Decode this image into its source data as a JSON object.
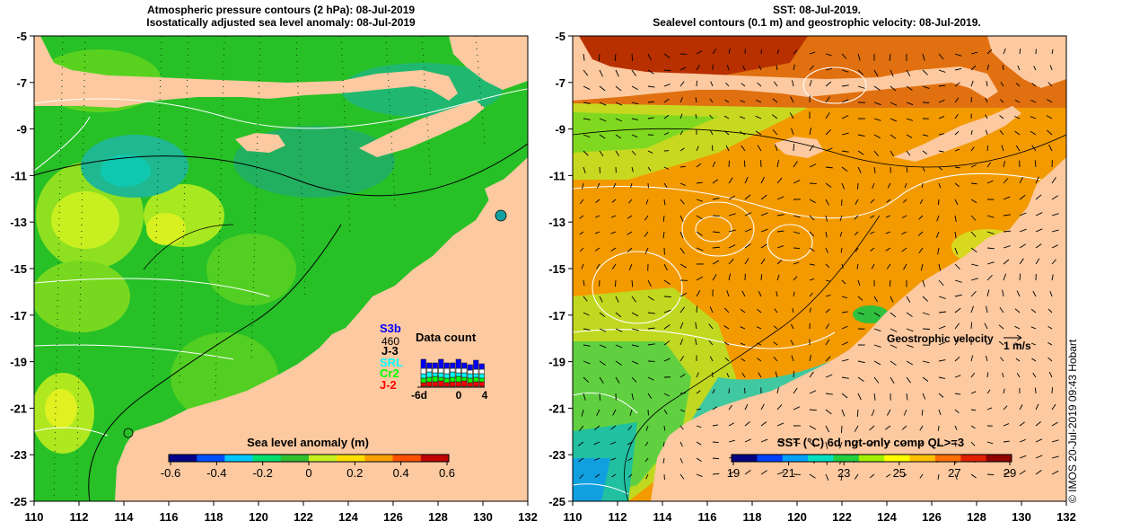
{
  "left_panel": {
    "title_line1": "Atmospheric pressure contours (2 hPa): 08-Jul-2019",
    "title_line2": "Isostatically adjusted sea level anomaly: 08-Jul-2019",
    "x_ticks": [
      "110",
      "112",
      "114",
      "116",
      "118",
      "120",
      "122",
      "124",
      "126",
      "128",
      "130",
      "132"
    ],
    "y_ticks": [
      "-5",
      "-7",
      "-9",
      "-11",
      "-13",
      "-15",
      "-17",
      "-19",
      "-21",
      "-23",
      "-25"
    ],
    "colorbar": {
      "label": "Sea level anomaly (m)",
      "ticks": [
        "-0.6",
        "-0.4",
        "-0.2",
        "0",
        "0.2",
        "0.4",
        "0.6"
      ],
      "colors": [
        "#00008b",
        "#0050ff",
        "#00c8ff",
        "#00e070",
        "#30c030",
        "#c8f020",
        "#ffe000",
        "#ffa000",
        "#ff5000",
        "#c00000"
      ]
    },
    "data_count": {
      "title": "Data count",
      "missions": [
        {
          "name": "S3b",
          "color": "#0000ff"
        },
        {
          "name": "J-3",
          "color": "#000000",
          "value": "460"
        },
        {
          "name": "SRL",
          "color": "#00ffff"
        },
        {
          "name": "Cr2",
          "color": "#00ff00"
        },
        {
          "name": "J-2",
          "color": "#ff0000"
        }
      ],
      "axis_ticks": [
        "-6d",
        "0",
        "4"
      ]
    }
  },
  "right_panel": {
    "title_line1": "SST: 08-Jul-2019.",
    "title_line2": "Sealevel contours (0.1 m) and geostrophic velocity: 08-Jul-2019.",
    "x_ticks": [
      "110",
      "112",
      "114",
      "116",
      "118",
      "120",
      "122",
      "124",
      "126",
      "128",
      "130",
      "132"
    ],
    "y_ticks": [
      "-5",
      "-7",
      "-9",
      "-11",
      "-13",
      "-15",
      "-17",
      "-19",
      "-21",
      "-23",
      "-25"
    ],
    "velocity_label": "Geostrophic velocity",
    "velocity_unit": "1 m/s",
    "colorbar": {
      "label": "SST (°C) 6d ngt-only comp QL>=3",
      "ticks": [
        "19",
        "21",
        "23",
        "25",
        "27",
        "29"
      ],
      "colors": [
        "#000080",
        "#0040ff",
        "#00a0ff",
        "#00e0c0",
        "#20d040",
        "#a0f000",
        "#ffff00",
        "#ffc000",
        "#ff7000",
        "#e02000",
        "#900000"
      ]
    }
  },
  "credit": "© IMOS 20-Jul-2019 09:43 Hobart",
  "map_colors": {
    "land": "#fcc9a0",
    "sla_green": "#27c027",
    "sla_light": "#70d820",
    "sla_yellow": "#c8f020",
    "sla_cyan": "#10c8a0",
    "sst_orange": "#f8a000",
    "sst_red": "#c83000",
    "sst_green": "#50d040"
  }
}
